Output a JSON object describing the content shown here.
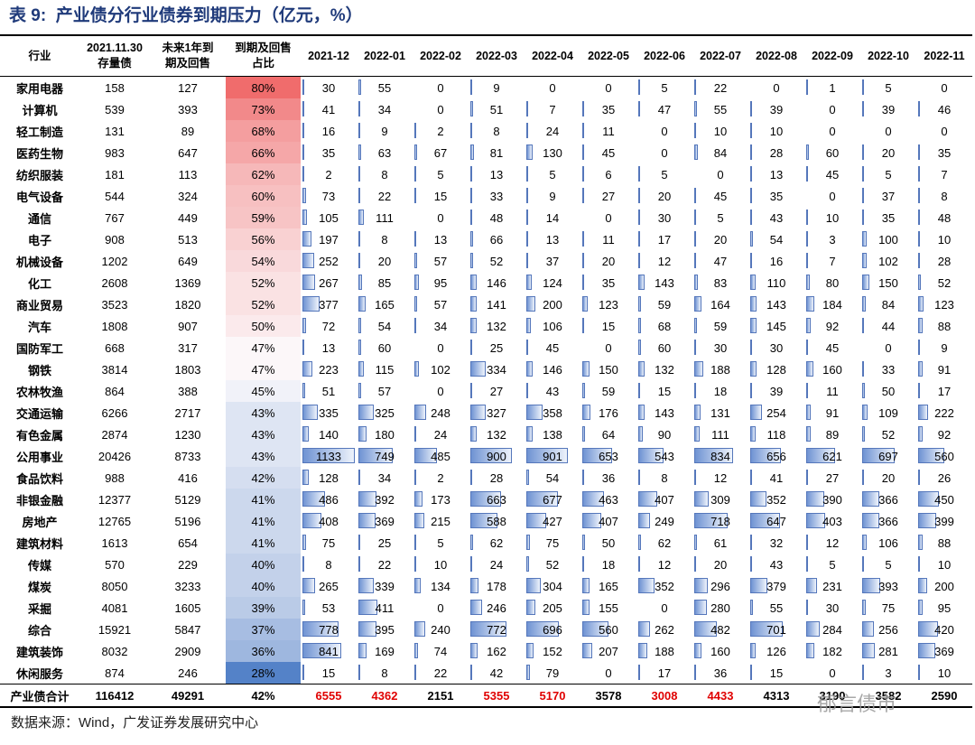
{
  "title": "表 9:  产业债分行业债券到期压力（亿元，%）",
  "table": {
    "header": {
      "industry": "行业",
      "stock": [
        "2021.11.30",
        "存量债"
      ],
      "due": [
        "未来1年到",
        "期及回售"
      ],
      "ratio": [
        "到期及回售",
        "占比"
      ],
      "months": [
        "2021-12",
        "2022-01",
        "2022-02",
        "2022-03",
        "2022-04",
        "2022-05",
        "2022-06",
        "2022-07",
        "2022-08",
        "2022-09",
        "2022-10",
        "2022-11"
      ]
    },
    "rows": [
      {
        "industry": "家用电器",
        "stock": 158,
        "due": 127,
        "ratio": "80%",
        "months": [
          30,
          55,
          0,
          9,
          0,
          0,
          5,
          22,
          0,
          1,
          5,
          0
        ]
      },
      {
        "industry": "计算机",
        "stock": 539,
        "due": 393,
        "ratio": "73%",
        "months": [
          41,
          34,
          0,
          51,
          7,
          35,
          47,
          55,
          39,
          0,
          39,
          46
        ]
      },
      {
        "industry": "轻工制造",
        "stock": 131,
        "due": 89,
        "ratio": "68%",
        "months": [
          16,
          9,
          2,
          8,
          24,
          11,
          0,
          10,
          10,
          0,
          0,
          0
        ]
      },
      {
        "industry": "医药生物",
        "stock": 983,
        "due": 647,
        "ratio": "66%",
        "months": [
          35,
          63,
          67,
          81,
          130,
          45,
          0,
          84,
          28,
          60,
          20,
          35
        ]
      },
      {
        "industry": "纺织服装",
        "stock": 181,
        "due": 113,
        "ratio": "62%",
        "months": [
          2,
          8,
          5,
          13,
          5,
          6,
          5,
          0,
          13,
          45,
          5,
          7
        ]
      },
      {
        "industry": "电气设备",
        "stock": 544,
        "due": 324,
        "ratio": "60%",
        "months": [
          73,
          22,
          15,
          33,
          9,
          27,
          20,
          45,
          35,
          0,
          37,
          8
        ]
      },
      {
        "industry": "通信",
        "stock": 767,
        "due": 449,
        "ratio": "59%",
        "months": [
          105,
          111,
          0,
          48,
          14,
          0,
          30,
          5,
          43,
          10,
          35,
          48
        ]
      },
      {
        "industry": "电子",
        "stock": 908,
        "due": 513,
        "ratio": "56%",
        "months": [
          197,
          8,
          13,
          66,
          13,
          11,
          17,
          20,
          54,
          3,
          100,
          10
        ]
      },
      {
        "industry": "机械设备",
        "stock": 1202,
        "due": 649,
        "ratio": "54%",
        "months": [
          252,
          20,
          57,
          52,
          37,
          20,
          12,
          47,
          16,
          7,
          102,
          28
        ]
      },
      {
        "industry": "化工",
        "stock": 2608,
        "due": 1369,
        "ratio": "52%",
        "months": [
          267,
          85,
          95,
          146,
          124,
          35,
          143,
          83,
          110,
          80,
          150,
          52
        ]
      },
      {
        "industry": "商业贸易",
        "stock": 3523,
        "due": 1820,
        "ratio": "52%",
        "months": [
          377,
          165,
          57,
          141,
          200,
          123,
          59,
          164,
          143,
          184,
          84,
          123
        ]
      },
      {
        "industry": "汽车",
        "stock": 1808,
        "due": 907,
        "ratio": "50%",
        "months": [
          72,
          54,
          34,
          132,
          106,
          15,
          68,
          59,
          145,
          92,
          44,
          88
        ]
      },
      {
        "industry": "国防军工",
        "stock": 668,
        "due": 317,
        "ratio": "47%",
        "months": [
          13,
          60,
          0,
          25,
          45,
          0,
          60,
          30,
          30,
          45,
          0,
          9
        ]
      },
      {
        "industry": "钢铁",
        "stock": 3814,
        "due": 1803,
        "ratio": "47%",
        "months": [
          223,
          115,
          102,
          334,
          146,
          150,
          132,
          188,
          128,
          160,
          33,
          91
        ]
      },
      {
        "industry": "农林牧渔",
        "stock": 864,
        "due": 388,
        "ratio": "45%",
        "months": [
          51,
          57,
          0,
          27,
          43,
          59,
          15,
          18,
          39,
          11,
          50,
          17
        ]
      },
      {
        "industry": "交通运输",
        "stock": 6266,
        "due": 2717,
        "ratio": "43%",
        "months": [
          335,
          325,
          248,
          327,
          358,
          176,
          143,
          131,
          254,
          91,
          109,
          222
        ]
      },
      {
        "industry": "有色金属",
        "stock": 2874,
        "due": 1230,
        "ratio": "43%",
        "months": [
          140,
          180,
          24,
          132,
          138,
          64,
          90,
          111,
          118,
          89,
          52,
          92
        ]
      },
      {
        "industry": "公用事业",
        "stock": 20426,
        "due": 8733,
        "ratio": "43%",
        "months": [
          1133,
          749,
          485,
          900,
          901,
          653,
          543,
          834,
          656,
          621,
          697,
          560
        ]
      },
      {
        "industry": "食品饮料",
        "stock": 988,
        "due": 416,
        "ratio": "42%",
        "months": [
          128,
          34,
          2,
          28,
          54,
          36,
          8,
          12,
          41,
          27,
          20,
          26
        ]
      },
      {
        "industry": "非银金融",
        "stock": 12377,
        "due": 5129,
        "ratio": "41%",
        "months": [
          486,
          392,
          173,
          663,
          677,
          463,
          407,
          309,
          352,
          390,
          366,
          450
        ]
      },
      {
        "industry": "房地产",
        "stock": 12765,
        "due": 5196,
        "ratio": "41%",
        "months": [
          408,
          369,
          215,
          588,
          427,
          407,
          249,
          718,
          647,
          403,
          366,
          399
        ]
      },
      {
        "industry": "建筑材料",
        "stock": 1613,
        "due": 654,
        "ratio": "41%",
        "months": [
          75,
          25,
          5,
          62,
          75,
          50,
          62,
          61,
          32,
          12,
          106,
          88
        ]
      },
      {
        "industry": "传媒",
        "stock": 570,
        "due": 229,
        "ratio": "40%",
        "months": [
          8,
          22,
          10,
          24,
          52,
          18,
          12,
          20,
          43,
          5,
          5,
          10
        ]
      },
      {
        "industry": "煤炭",
        "stock": 8050,
        "due": 3233,
        "ratio": "40%",
        "months": [
          265,
          339,
          134,
          178,
          304,
          165,
          352,
          296,
          379,
          231,
          393,
          200
        ]
      },
      {
        "industry": "采掘",
        "stock": 4081,
        "due": 1605,
        "ratio": "39%",
        "months": [
          53,
          411,
          0,
          246,
          205,
          155,
          0,
          280,
          55,
          30,
          75,
          95
        ]
      },
      {
        "industry": "综合",
        "stock": 15921,
        "due": 5847,
        "ratio": "37%",
        "months": [
          778,
          395,
          240,
          772,
          696,
          560,
          262,
          482,
          701,
          284,
          256,
          420
        ]
      },
      {
        "industry": "建筑装饰",
        "stock": 8032,
        "due": 2909,
        "ratio": "36%",
        "months": [
          841,
          169,
          74,
          162,
          152,
          207,
          188,
          160,
          126,
          182,
          281,
          369
        ]
      },
      {
        "industry": "休闲服务",
        "stock": 874,
        "due": 246,
        "ratio": "28%",
        "months": [
          15,
          8,
          22,
          42,
          79,
          0,
          17,
          36,
          15,
          0,
          3,
          10
        ]
      }
    ],
    "total": {
      "industry": "产业债合计",
      "stock": 116412,
      "due": 49291,
      "ratio": "42%",
      "months": [
        6555,
        4362,
        2151,
        5355,
        5170,
        3578,
        3008,
        4433,
        4313,
        3190,
        3582,
        2590
      ]
    }
  },
  "source": "数据来源：Wind，广发证券发展研究中心",
  "watermark": "郁言债市"
}
